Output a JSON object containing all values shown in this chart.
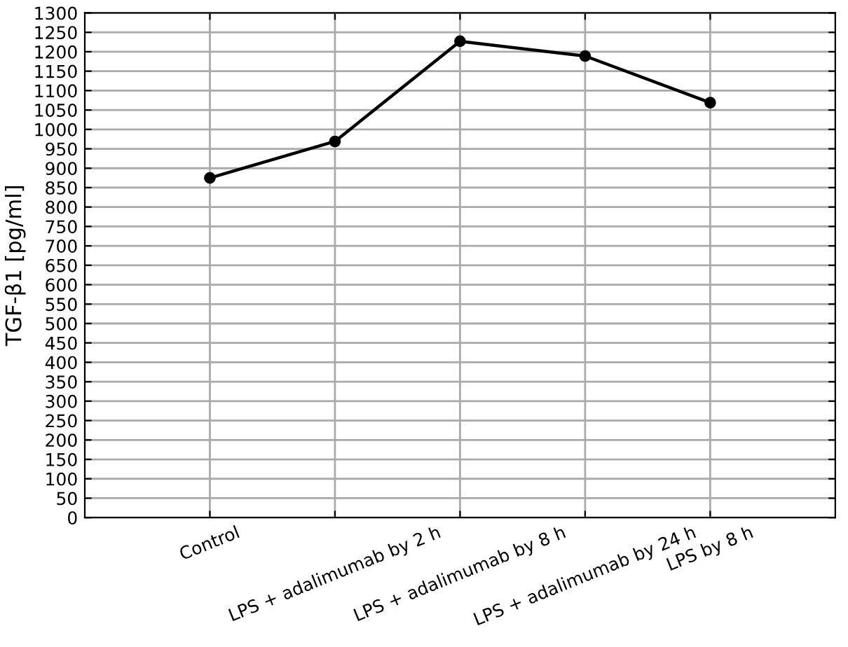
{
  "chart_data": {
    "type": "line",
    "ylabel": "TGF-β1 [pg/ml]",
    "categories": [
      "Control",
      "LPS + adalimumab by 2 h",
      "LPS + adalimumab by 8 h",
      "LPS + adalimumab by 24 h",
      "LPS by 8 h"
    ],
    "series": [
      {
        "color": "#000000",
        "values": [
          875,
          969,
          1227,
          1189,
          1069
        ]
      }
    ],
    "ylim": [
      0,
      1300
    ],
    "yticks": [
      0,
      50,
      100,
      150,
      200,
      250,
      300,
      350,
      400,
      450,
      500,
      550,
      600,
      650,
      700,
      750,
      800,
      850,
      900,
      950,
      1000,
      1050,
      1100,
      1150,
      1200,
      1250,
      1300
    ],
    "grid": true,
    "marker": "circle",
    "line_style": "solid"
  }
}
